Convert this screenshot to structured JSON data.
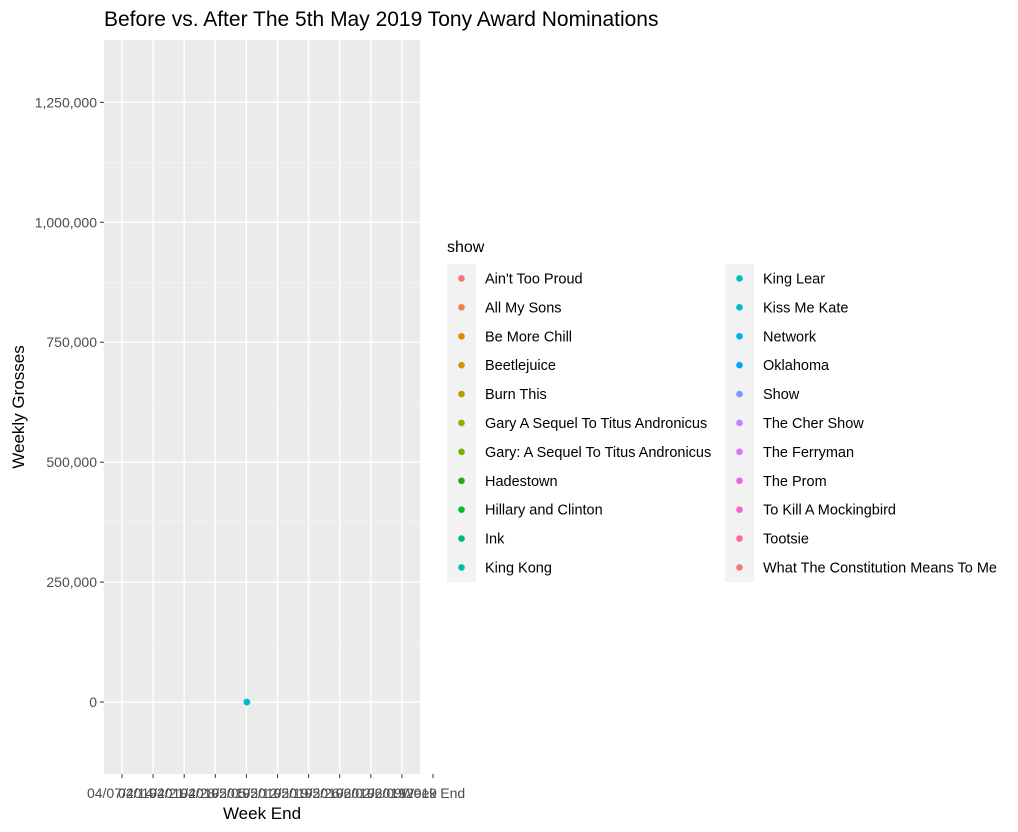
{
  "chart_data": {
    "type": "scatter",
    "title": "Before vs. After The 5th May 2019 Tony Award Nominations",
    "xlabel": "Week End",
    "ylabel": "Weekly Grosses",
    "x_categories": [
      "04/07/2019",
      "04/14/2019",
      "04/21/2019",
      "04/28/2019",
      "05/05/2019",
      "05/12/2019",
      "05/19/2019",
      "05/26/2019",
      "06/02/2019",
      "06/09/2019",
      "Week End"
    ],
    "y_ticks": [
      0,
      250000,
      500000,
      750000,
      1000000,
      1250000
    ],
    "y_tick_labels": [
      "0",
      "250,000",
      "500,000",
      "750,000",
      "1,000,000",
      "1,250,000"
    ],
    "ylim": [
      -150000,
      1380000
    ],
    "grid": true,
    "points": [
      {
        "x": "05/05/2019",
        "y": 0,
        "show": "Network"
      },
      {
        "x": "05/05/2019",
        "y": 0,
        "show": "Kiss Me Kate"
      }
    ],
    "legend": {
      "title": "show",
      "placement": "right",
      "columns": 2,
      "items": [
        {
          "label": "Ain't Too Proud",
          "color": "#F8766D"
        },
        {
          "label": "All My Sons",
          "color": "#EE8043"
        },
        {
          "label": "Be More Chill",
          "color": "#E18A00"
        },
        {
          "label": "Beetlejuice",
          "color": "#CD9600"
        },
        {
          "label": "Burn This",
          "color": "#B79F00"
        },
        {
          "label": "Gary A Sequel To Titus Andronicus",
          "color": "#9DA700"
        },
        {
          "label": "Gary: A Sequel To Titus Andronicus",
          "color": "#7CAE00"
        },
        {
          "label": "Hadestown",
          "color": "#1AB300"
        },
        {
          "label": "Hillary and Clinton",
          "color": "#00BA38"
        },
        {
          "label": "Ink",
          "color": "#00BE6C"
        },
        {
          "label": "King Kong",
          "color": "#00C0A3"
        },
        {
          "label": "King Lear",
          "color": "#00BFB8"
        },
        {
          "label": "Kiss Me Kate",
          "color": "#00BCD4"
        },
        {
          "label": "Network",
          "color": "#00B0F6"
        },
        {
          "label": "Oklahoma",
          "color": "#00A5FF"
        },
        {
          "label": "Show",
          "color": "#7F96FF"
        },
        {
          "label": "The Cher Show",
          "color": "#B983FF"
        },
        {
          "label": "The Ferryman",
          "color": "#DC71FA"
        },
        {
          "label": "The Prom",
          "color": "#F064E3"
        },
        {
          "label": "To Kill A Mockingbird",
          "color": "#FD61D1"
        },
        {
          "label": "Tootsie",
          "color": "#FF67A4"
        },
        {
          "label": "What The Constitution Means To Me",
          "color": "#F8766D"
        }
      ]
    }
  }
}
